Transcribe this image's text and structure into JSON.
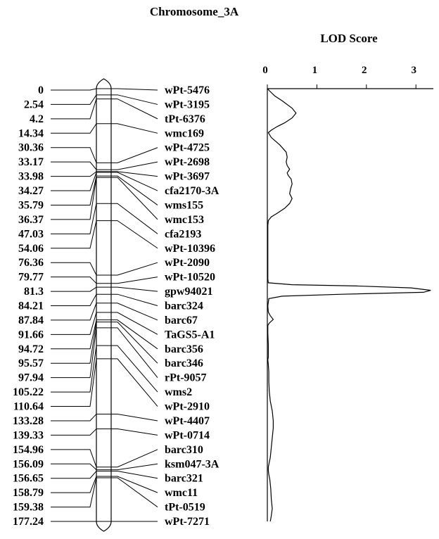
{
  "chart_data": {
    "type": "line",
    "title": "Chromosome_3A",
    "lod_axis": {
      "label": "LOD Score",
      "ticks": [
        0,
        1,
        2,
        3
      ],
      "range": [
        0,
        3.35
      ]
    },
    "markers": [
      {
        "name": "wPt-5476",
        "pos": 0
      },
      {
        "name": "wPt-3195",
        "pos": 2.54
      },
      {
        "name": "tPt-6376",
        "pos": 4.2
      },
      {
        "name": "wmc169",
        "pos": 14.34
      },
      {
        "name": "wPt-4725",
        "pos": 30.36
      },
      {
        "name": "wPt-2698",
        "pos": 33.17
      },
      {
        "name": "wPt-3697",
        "pos": 33.98
      },
      {
        "name": "cfa2170-3A",
        "pos": 34.27
      },
      {
        "name": "wms155",
        "pos": 35.79
      },
      {
        "name": "wmc153",
        "pos": 36.37
      },
      {
        "name": "cfa2193",
        "pos": 47.03
      },
      {
        "name": "wPt-10396",
        "pos": 54.06
      },
      {
        "name": "wPt-2090",
        "pos": 76.36
      },
      {
        "name": "wPt-10520",
        "pos": 79.77
      },
      {
        "name": "gpw94021",
        "pos": 81.3
      },
      {
        "name": "barc324",
        "pos": 84.21
      },
      {
        "name": "barc67",
        "pos": 87.84
      },
      {
        "name": "TaGS5-A1",
        "pos": 91.66
      },
      {
        "name": "barc356",
        "pos": 94.72
      },
      {
        "name": "barc346",
        "pos": 95.57
      },
      {
        "name": "rPt-9057",
        "pos": 97.94
      },
      {
        "name": "wms2",
        "pos": 105.22
      },
      {
        "name": "wPt-2910",
        "pos": 110.64
      },
      {
        "name": "wPt-4407",
        "pos": 133.28
      },
      {
        "name": "wPt-0714",
        "pos": 139.33
      },
      {
        "name": "barc310",
        "pos": 154.96
      },
      {
        "name": "ksm047-3A",
        "pos": 156.09
      },
      {
        "name": "barc321",
        "pos": 156.65
      },
      {
        "name": "wmc11",
        "pos": 158.79
      },
      {
        "name": "tPt-0519",
        "pos": 159.38
      },
      {
        "name": "wPt-7271",
        "pos": 177.24
      }
    ],
    "lod_profile": [
      [
        0,
        0
      ],
      [
        1,
        0.05
      ],
      [
        3,
        0.15
      ],
      [
        5,
        0.3
      ],
      [
        8,
        0.5
      ],
      [
        10,
        0.58
      ],
      [
        12,
        0.5
      ],
      [
        14,
        0.35
      ],
      [
        15.5,
        0.2
      ],
      [
        17,
        0.08
      ],
      [
        18,
        0.02
      ],
      [
        20,
        0.08
      ],
      [
        23,
        0.25
      ],
      [
        26,
        0.38
      ],
      [
        28,
        0.4
      ],
      [
        30,
        0.38
      ],
      [
        31.5,
        0.4
      ],
      [
        33,
        0.45
      ],
      [
        34.5,
        0.4
      ],
      [
        35.5,
        0.42
      ],
      [
        37,
        0.48
      ],
      [
        39,
        0.5
      ],
      [
        41,
        0.47
      ],
      [
        43,
        0.45
      ],
      [
        45,
        0.5
      ],
      [
        47,
        0.45
      ],
      [
        49,
        0.35
      ],
      [
        51,
        0.2
      ],
      [
        52.5,
        0.08
      ],
      [
        54,
        0.02
      ],
      [
        56,
        0.01
      ],
      [
        76,
        0.01
      ],
      [
        78,
        0.01
      ],
      [
        79.5,
        0.02
      ],
      [
        80.3,
        0.5
      ],
      [
        80.8,
        1.8
      ],
      [
        81.6,
        2.9
      ],
      [
        82.6,
        3.3
      ],
      [
        83.4,
        3.15
      ],
      [
        84.2,
        1.5
      ],
      [
        85,
        0.3
      ],
      [
        86,
        0.03
      ],
      [
        89,
        0.01
      ],
      [
        91.5,
        0.02
      ],
      [
        93,
        0.06
      ],
      [
        94.5,
        0.12
      ],
      [
        96,
        0.04
      ],
      [
        97,
        0.01
      ],
      [
        100,
        0.01
      ],
      [
        105,
        0.02
      ],
      [
        110,
        0.02
      ],
      [
        111,
        0.01
      ],
      [
        113,
        0.02
      ],
      [
        116,
        0.03
      ],
      [
        120,
        0.03
      ],
      [
        124,
        0.04
      ],
      [
        128,
        0.06
      ],
      [
        132,
        0.1
      ],
      [
        136,
        0.12
      ],
      [
        139,
        0.12
      ],
      [
        143,
        0.1
      ],
      [
        147,
        0.08
      ],
      [
        151,
        0.06
      ],
      [
        155,
        0.02
      ],
      [
        156.5,
        0.02
      ],
      [
        158,
        0.03
      ],
      [
        160,
        0.05
      ],
      [
        164,
        0.07
      ],
      [
        168,
        0.08
      ],
      [
        172,
        0.1
      ],
      [
        175,
        0.08
      ],
      [
        177.24,
        0.06
      ]
    ]
  }
}
